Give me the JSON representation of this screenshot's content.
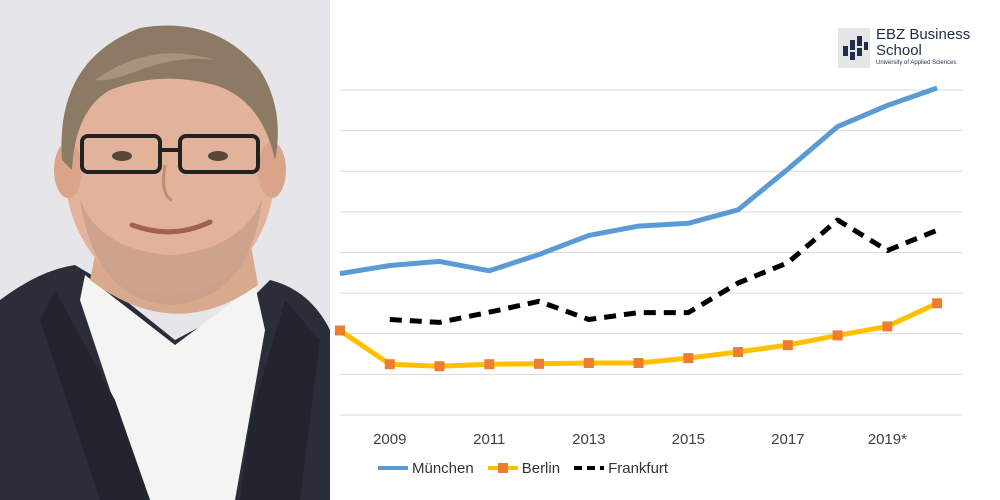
{
  "logo": {
    "line1": "EBZ Business",
    "line2": "School",
    "line3": "University of Applied Sciences"
  },
  "colors": {
    "muenchen": "#5b9bd5",
    "berlin": "#ffc000",
    "berlin_marker": "#ed7d31",
    "frankfurt": "#000000",
    "grid": "#d9d9d9",
    "tick_text": "#404040"
  },
  "chart_data": {
    "type": "line",
    "title": "",
    "xlabel": "",
    "ylabel": "",
    "x_tick_labels": [
      "2009",
      "2011",
      "2013",
      "2015",
      "2017",
      "2019*"
    ],
    "x": [
      2008,
      2009,
      2010,
      2011,
      2012,
      2013,
      2014,
      2015,
      2016,
      2017,
      2018,
      2019,
      2020
    ],
    "xlim": [
      2008,
      2020.5
    ],
    "ylim": [
      0,
      8
    ],
    "grid": true,
    "y_gridlines": 8,
    "legend": "bottom",
    "series": [
      {
        "name": "München",
        "style": "solid",
        "values": [
          3.48,
          3.68,
          3.78,
          3.55,
          3.95,
          4.42,
          4.65,
          4.72,
          5.05,
          6.05,
          7.1,
          7.62,
          8.05
        ]
      },
      {
        "name": "Berlin",
        "style": "solid-square-markers",
        "values": [
          2.08,
          1.25,
          1.2,
          1.25,
          1.26,
          1.28,
          1.28,
          1.4,
          1.55,
          1.72,
          1.96,
          2.18,
          2.75
        ]
      },
      {
        "name": "Frankfurt",
        "style": "dashed",
        "values": [
          null,
          2.35,
          2.28,
          2.53,
          2.8,
          2.35,
          2.52,
          2.52,
          3.25,
          3.75,
          4.8,
          4.05,
          4.55
        ]
      }
    ]
  }
}
